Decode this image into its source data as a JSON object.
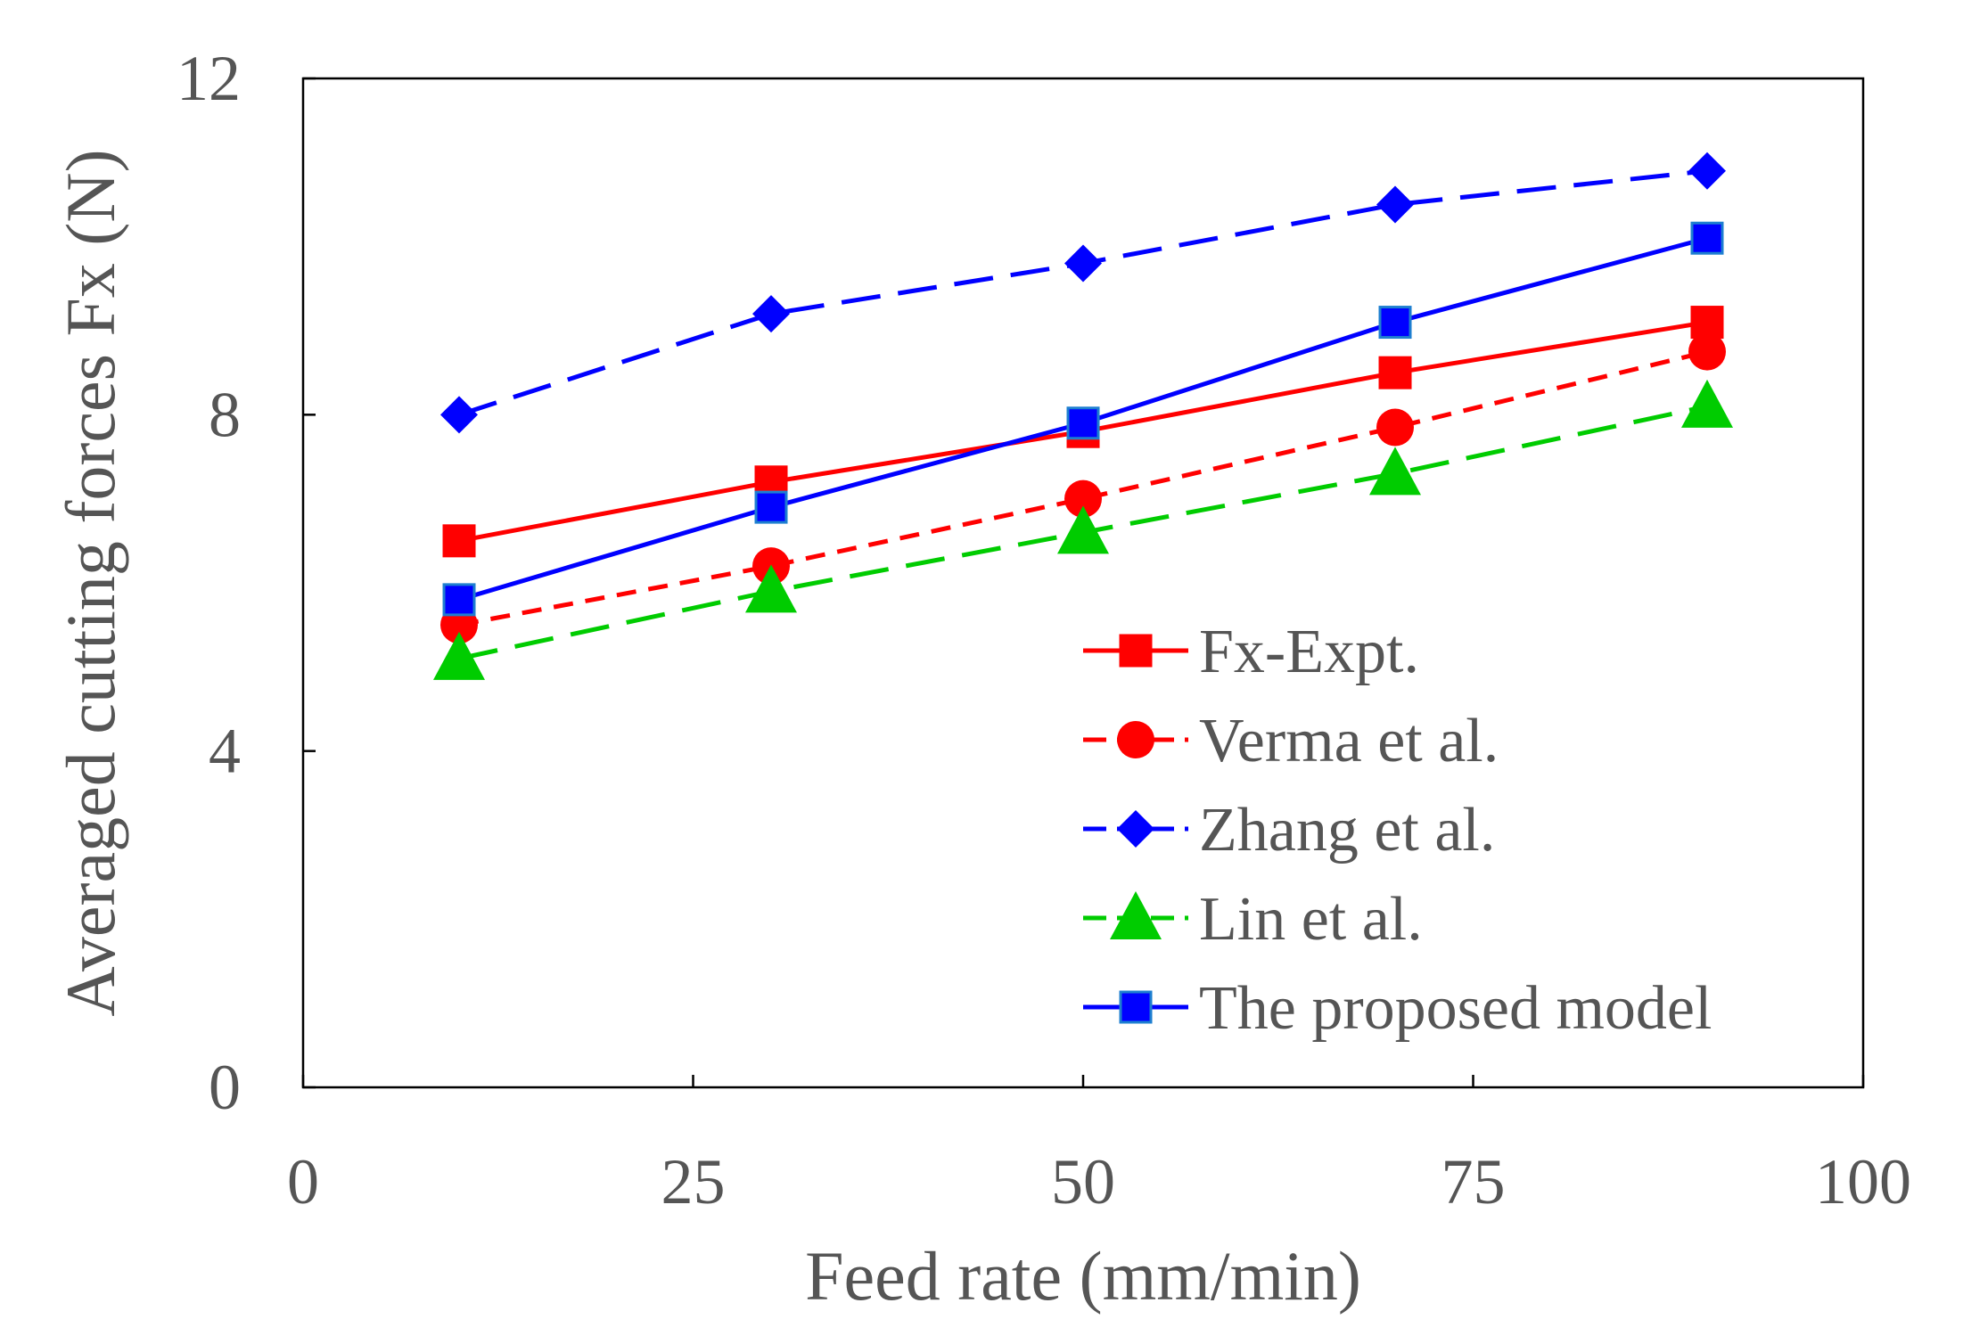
{
  "chart_data": {
    "type": "line",
    "title": "",
    "xlabel": "Feed rate (mm/min)",
    "ylabel": "Averaged cutting forces Fx (N)",
    "xlim": [
      0,
      100
    ],
    "ylim": [
      0,
      12
    ],
    "xticks": [
      0,
      25,
      50,
      75,
      100
    ],
    "yticks": [
      0,
      4,
      8,
      12
    ],
    "x_tick_labels": [
      "0",
      "25",
      "50",
      "75",
      "100"
    ],
    "y_tick_labels": [
      "0",
      "4",
      "8",
      "12"
    ],
    "grid": false,
    "legend_position": "lower-right",
    "x": [
      10,
      30,
      50,
      70,
      90
    ],
    "series": [
      {
        "name": "Fx-Expt.",
        "values": [
          6.5,
          7.2,
          7.8,
          8.5,
          9.1
        ],
        "color": "#ff0000",
        "dash": "solid",
        "marker": "square"
      },
      {
        "name": "Verma et al.",
        "values": [
          5.5,
          6.2,
          7.0,
          7.85,
          8.75
        ],
        "color": "#ff0000",
        "dash": "short",
        "marker": "circle"
      },
      {
        "name": "Zhang et al.",
        "values": [
          8.0,
          9.2,
          9.8,
          10.5,
          10.9
        ],
        "color": "#0000ff",
        "dash": "long",
        "marker": "diamond"
      },
      {
        "name": "Lin et al.",
        "values": [
          5.1,
          5.9,
          6.6,
          7.3,
          8.1
        ],
        "color": "#00cc00",
        "dash": "long",
        "marker": "triangle"
      },
      {
        "name": "The proposed model",
        "values": [
          5.8,
          6.9,
          7.9,
          9.1,
          10.1
        ],
        "color": "#0000ff",
        "dash": "solid",
        "marker": "square"
      }
    ]
  }
}
